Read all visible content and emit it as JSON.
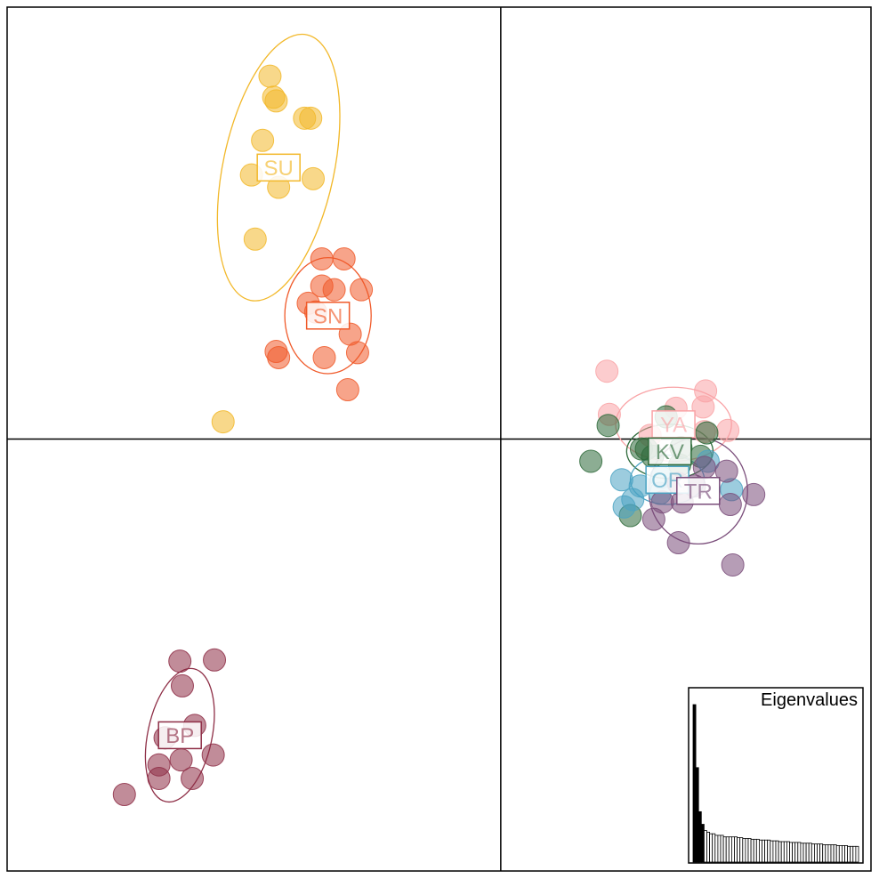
{
  "chart_data": {
    "type": "scatter",
    "title": "",
    "xlabel": "",
    "ylabel": "",
    "xlim": [
      -4.0,
      3.0
    ],
    "ylim": [
      -3.5,
      3.5
    ],
    "axes_cross": [
      0,
      0
    ],
    "grid": false,
    "groups": [
      {
        "name": "SU",
        "color": "#F2B82A",
        "center": [
          -1.8,
          2.2
        ],
        "ellipse": {
          "rx": 0.45,
          "ry": 1.1,
          "angle": 12
        },
        "points": [
          [
            -1.87,
            2.94
          ],
          [
            -1.82,
            2.74
          ],
          [
            -1.84,
            2.77
          ],
          [
            -1.59,
            2.6
          ],
          [
            -1.54,
            2.6
          ],
          [
            -1.93,
            2.42
          ],
          [
            -2.02,
            2.14
          ],
          [
            -1.8,
            2.04
          ],
          [
            -1.52,
            2.11
          ],
          [
            -1.99,
            1.62
          ],
          [
            -2.25,
            0.14
          ]
        ]
      },
      {
        "name": "SN",
        "color": "#F05A2A",
        "center": [
          -1.4,
          1.0
        ],
        "ellipse": {
          "rx": 0.35,
          "ry": 0.47,
          "angle": 0
        },
        "points": [
          [
            -1.45,
            1.46
          ],
          [
            -1.27,
            1.46
          ],
          [
            -1.45,
            1.24
          ],
          [
            -1.35,
            1.21
          ],
          [
            -1.13,
            1.21
          ],
          [
            -1.56,
            1.1
          ],
          [
            -1.5,
            1.03
          ],
          [
            -1.22,
            0.85
          ],
          [
            -1.82,
            0.71
          ],
          [
            -1.8,
            0.66
          ],
          [
            -1.43,
            0.66
          ],
          [
            -1.16,
            0.7
          ],
          [
            -1.24,
            0.4
          ]
        ]
      },
      {
        "name": "YA",
        "color": "#F9A3A6",
        "center": [
          1.4,
          0.12
        ],
        "ellipse": {
          "rx": 0.47,
          "ry": 0.3,
          "angle": 0
        },
        "points": [
          [
            0.86,
            0.55
          ],
          [
            1.66,
            0.39
          ],
          [
            0.88,
            0.2
          ],
          [
            1.42,
            0.25
          ],
          [
            1.64,
            0.26
          ],
          [
            1.84,
            0.07
          ],
          [
            1.65,
            0.06
          ],
          [
            1.21,
            0.03
          ]
        ]
      },
      {
        "name": "KV",
        "color": "#2E6A3A",
        "center": [
          1.37,
          -0.1
        ],
        "ellipse": {
          "rx": 0.35,
          "ry": 0.22,
          "angle": 0
        },
        "points": [
          [
            0.87,
            0.11
          ],
          [
            1.34,
            0.18
          ],
          [
            1.67,
            0.05
          ],
          [
            1.62,
            -0.14
          ],
          [
            0.73,
            -0.18
          ],
          [
            1.18,
            -0.08
          ],
          [
            1.46,
            -0.07
          ],
          [
            1.23,
            -0.14
          ],
          [
            1.14,
            -0.08
          ],
          [
            1.45,
            -0.21
          ],
          [
            1.05,
            -0.62
          ]
        ]
      },
      {
        "name": "OR",
        "color": "#4BA3C3",
        "center": [
          1.35,
          -0.33
        ],
        "ellipse": {
          "rx": 0.3,
          "ry": 0.2,
          "angle": 0
        },
        "points": [
          [
            1.68,
            -0.18
          ],
          [
            0.98,
            -0.33
          ],
          [
            1.13,
            -0.38
          ],
          [
            1.29,
            -0.44
          ],
          [
            1.87,
            -0.41
          ],
          [
            1.0,
            -0.55
          ],
          [
            1.07,
            -0.49
          ],
          [
            1.3,
            -0.31
          ]
        ]
      },
      {
        "name": "TR",
        "color": "#7A4D7A",
        "center": [
          1.6,
          -0.42
        ],
        "ellipse": {
          "rx": 0.4,
          "ry": 0.43,
          "angle": 0
        },
        "points": [
          [
            1.65,
            -0.23
          ],
          [
            1.44,
            -0.36
          ],
          [
            1.83,
            -0.26
          ],
          [
            1.57,
            -0.38
          ],
          [
            2.05,
            -0.45
          ],
          [
            1.47,
            -0.51
          ],
          [
            1.86,
            -0.53
          ],
          [
            1.31,
            -0.51
          ],
          [
            1.24,
            -0.65
          ],
          [
            1.44,
            -0.84
          ],
          [
            1.88,
            -1.02
          ]
        ]
      },
      {
        "name": "BP",
        "color": "#8E2E46",
        "center": [
          -2.6,
          -2.4
        ],
        "ellipse": {
          "rx": 0.26,
          "ry": 0.55,
          "angle": 12
        },
        "points": [
          [
            -2.6,
            -1.8
          ],
          [
            -2.32,
            -1.79
          ],
          [
            -2.58,
            -2.0
          ],
          [
            -2.48,
            -2.32
          ],
          [
            -2.72,
            -2.42
          ],
          [
            -2.33,
            -2.56
          ],
          [
            -2.59,
            -2.6
          ],
          [
            -2.77,
            -2.64
          ],
          [
            -2.5,
            -2.75
          ],
          [
            -2.77,
            -2.75
          ],
          [
            -3.05,
            -2.88
          ]
        ]
      }
    ],
    "inset": {
      "title": "Eigenvalues",
      "bar_fill": "#ffffff",
      "bar_fill_retained": "#000000",
      "retained_count": 4,
      "values": [
        1.0,
        0.6,
        0.32,
        0.24,
        0.2,
        0.19,
        0.18,
        0.18,
        0.17,
        0.17,
        0.17,
        0.16,
        0.16,
        0.16,
        0.16,
        0.16,
        0.155,
        0.155,
        0.15,
        0.15,
        0.15,
        0.145,
        0.145,
        0.145,
        0.14,
        0.14,
        0.14,
        0.14,
        0.135,
        0.135,
        0.135,
        0.13,
        0.13,
        0.13,
        0.13,
        0.125,
        0.125,
        0.125,
        0.125,
        0.12,
        0.12,
        0.12,
        0.12,
        0.115,
        0.115,
        0.115,
        0.115,
        0.11,
        0.11,
        0.11,
        0.11,
        0.11,
        0.105,
        0.105,
        0.105,
        0.105,
        0.1,
        0.1,
        0.1,
        0.1
      ]
    }
  }
}
